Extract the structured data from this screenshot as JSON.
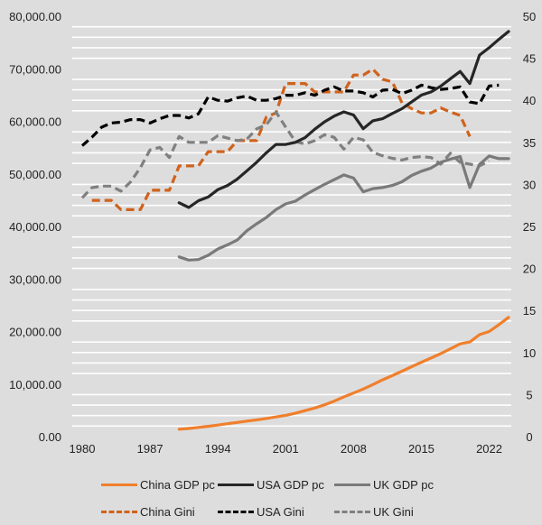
{
  "chart_data": {
    "type": "line",
    "title": "",
    "xlabel": "",
    "ylabel": "",
    "y2label": "",
    "grid": true,
    "legend_position": "bottom",
    "x_ticks": [
      "1980",
      "1987",
      "1994",
      "2001",
      "2008",
      "2015",
      "2022"
    ],
    "y_ticks": [
      "0.00",
      "10,000.00",
      "20,000.00",
      "30,000.00",
      "40,000.00",
      "50,000.00",
      "60,000.00",
      "70,000.00",
      "80,000.00"
    ],
    "y2_ticks": [
      "0",
      "5",
      "10",
      "15",
      "20",
      "25",
      "30",
      "35",
      "40",
      "45",
      "50"
    ],
    "xlim": [
      1980,
      2024
    ],
    "ylim": [
      0,
      80000
    ],
    "y2lim": [
      0,
      50
    ],
    "series": [
      {
        "name": "China GDP pc",
        "axis": "left",
        "style": "solid",
        "color": "#f07f2c",
        "x": [
          1990,
          1991,
          1992,
          1993,
          1994,
          1995,
          1996,
          1997,
          1998,
          1999,
          2000,
          2001,
          2002,
          2003,
          2004,
          2005,
          2006,
          2007,
          2008,
          2009,
          2010,
          2011,
          2012,
          2013,
          2014,
          2015,
          2016,
          2017,
          2018,
          2019,
          2020,
          2021,
          2022,
          2023,
          2024
        ],
        "values": [
          1400,
          1550,
          1750,
          1950,
          2200,
          2450,
          2700,
          2950,
          3200,
          3450,
          3750,
          4050,
          4450,
          4950,
          5450,
          6050,
          6750,
          7550,
          8300,
          9050,
          9900,
          10800,
          11600,
          12450,
          13300,
          14150,
          14950,
          15800,
          16700,
          17650,
          18000,
          19400,
          20000,
          21300,
          22700
        ]
      },
      {
        "name": "USA GDP pc",
        "axis": "left",
        "style": "solid",
        "color": "#262626",
        "x": [
          1990,
          1991,
          1992,
          1993,
          1994,
          1995,
          1996,
          1997,
          1998,
          1999,
          2000,
          2001,
          2002,
          2003,
          2004,
          2005,
          2006,
          2007,
          2008,
          2009,
          2010,
          2011,
          2012,
          2013,
          2014,
          2015,
          2016,
          2017,
          2018,
          2019,
          2020,
          2021,
          2022,
          2023,
          2024
        ],
        "values": [
          44500,
          43600,
          44900,
          45600,
          47000,
          47800,
          49000,
          50600,
          52200,
          54000,
          55600,
          55600,
          56000,
          56900,
          58500,
          59900,
          61000,
          61800,
          61200,
          58600,
          60100,
          60500,
          61500,
          62400,
          63700,
          65000,
          65600,
          66700,
          68100,
          69500,
          67200,
          72600,
          74000,
          75600,
          77100
        ]
      },
      {
        "name": "UK GDP pc",
        "axis": "left",
        "style": "solid",
        "color": "#7a7a7a",
        "x": [
          1990,
          1991,
          1992,
          1993,
          1994,
          1995,
          1996,
          1997,
          1998,
          1999,
          2000,
          2001,
          2002,
          2003,
          2004,
          2005,
          2006,
          2007,
          2008,
          2009,
          2010,
          2011,
          2012,
          2013,
          2014,
          2015,
          2016,
          2017,
          2018,
          2019,
          2020,
          2021,
          2022,
          2023,
          2024
        ],
        "values": [
          34200,
          33600,
          33700,
          34500,
          35700,
          36500,
          37400,
          39200,
          40500,
          41700,
          43200,
          44300,
          44800,
          46000,
          47000,
          48000,
          48900,
          49800,
          49200,
          46600,
          47200,
          47400,
          47800,
          48500,
          49700,
          50500,
          51100,
          52200,
          52800,
          53300,
          47400,
          51800,
          53400,
          52900,
          52900
        ]
      },
      {
        "name": "China Gini",
        "axis": "right",
        "style": "dashed",
        "color": "#d0621c",
        "x": [
          1981,
          1982,
          1983,
          1984,
          1985,
          1986,
          1987,
          1988,
          1989,
          1990,
          1991,
          1992,
          1993,
          1994,
          1995,
          1996,
          1997,
          1998,
          1999,
          2000,
          2001,
          2002,
          2003,
          2004,
          2005,
          2006,
          2007,
          2008,
          2009,
          2010,
          2011,
          2012,
          2013,
          2014,
          2015,
          2016,
          2017,
          2018,
          2019,
          2020
        ],
        "values": [
          28.1,
          28.1,
          28.1,
          27.0,
          27.0,
          27.0,
          29.3,
          29.3,
          29.3,
          32.2,
          32.2,
          32.2,
          33.9,
          33.9,
          33.9,
          35.2,
          35.2,
          35.2,
          38.0,
          38.5,
          42.0,
          42.0,
          42.0,
          41.0,
          41.0,
          41.0,
          41.0,
          43.0,
          43.0,
          43.7,
          42.5,
          42.2,
          39.7,
          39.0,
          38.5,
          38.5,
          39.1,
          38.6,
          38.2,
          35.7
        ]
      },
      {
        "name": "USA Gini",
        "axis": "right",
        "style": "dashed",
        "color": "#000000",
        "x": [
          1980,
          1981,
          1982,
          1983,
          1984,
          1985,
          1986,
          1987,
          1988,
          1989,
          1990,
          1991,
          1992,
          1993,
          1994,
          1995,
          1996,
          1997,
          1998,
          1999,
          2000,
          2001,
          2002,
          2003,
          2004,
          2005,
          2006,
          2007,
          2008,
          2009,
          2010,
          2011,
          2012,
          2013,
          2014,
          2015,
          2016,
          2017,
          2018,
          2019,
          2020,
          2021,
          2022,
          2023
        ],
        "values": [
          34.6,
          35.6,
          36.8,
          37.3,
          37.4,
          37.7,
          37.7,
          37.3,
          37.8,
          38.2,
          38.2,
          37.9,
          38.4,
          40.4,
          40.0,
          39.9,
          40.3,
          40.5,
          40.0,
          40.0,
          40.2,
          40.6,
          40.6,
          40.9,
          40.6,
          41.2,
          41.6,
          41.1,
          41.1,
          40.9,
          40.4,
          41.2,
          41.3,
          40.8,
          41.2,
          41.8,
          41.5,
          41.3,
          41.4,
          41.6,
          39.8,
          39.6,
          41.7,
          41.8
        ]
      },
      {
        "name": "UK Gini",
        "axis": "right",
        "style": "dashed",
        "color": "#808080",
        "x": [
          1980,
          1981,
          1982,
          1983,
          1984,
          1985,
          1986,
          1987,
          1988,
          1989,
          1990,
          1991,
          1992,
          1993,
          1994,
          1995,
          1996,
          1997,
          1998,
          1999,
          2000,
          2001,
          2002,
          2003,
          2004,
          2005,
          2006,
          2007,
          2008,
          2009,
          2010,
          2011,
          2012,
          2013,
          2014,
          2015,
          2016,
          2017,
          2018,
          2019,
          2020,
          2021,
          2022
        ],
        "values": [
          28.4,
          29.6,
          29.8,
          29.8,
          29.2,
          30.3,
          32.0,
          34.1,
          34.4,
          33.2,
          35.7,
          35.0,
          35.0,
          35.0,
          35.8,
          35.5,
          35.2,
          35.4,
          36.6,
          37.1,
          38.6,
          36.8,
          35.1,
          34.8,
          35.2,
          35.9,
          35.6,
          34.2,
          35.6,
          35.3,
          33.8,
          33.4,
          33.1,
          32.9,
          33.2,
          33.3,
          33.2,
          32.4,
          33.7,
          32.6,
          32.4,
          32.2,
          32.8
        ]
      }
    ]
  }
}
